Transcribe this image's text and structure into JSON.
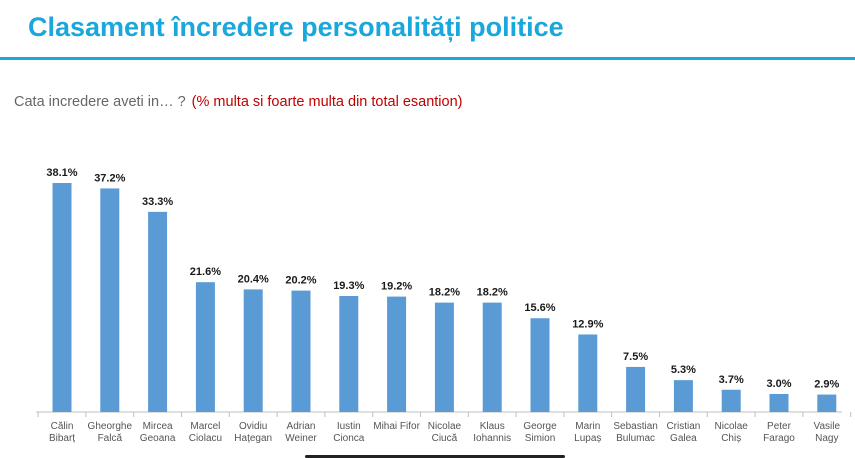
{
  "header": {
    "title": "Clasament încredere personalități politice",
    "question": "Cata incredere aveti in… ?",
    "note": "(% multa si foarte multa din total esantion)"
  },
  "colors": {
    "accent": "#1aa7dc",
    "bar": "#5b9bd5",
    "note": "#c00000"
  },
  "chart_data": {
    "type": "bar",
    "title": "",
    "xlabel": "",
    "ylabel": "",
    "ylim": [
      0,
      40
    ],
    "grid": false,
    "legend": "none",
    "categories": [
      [
        "Călin",
        "Bibarț"
      ],
      [
        "Gheorghe",
        "Falcă"
      ],
      [
        "Mircea",
        "Geoana"
      ],
      [
        "Marcel",
        "Ciolacu"
      ],
      [
        "Ovidiu",
        "Hațegan"
      ],
      [
        "Adrian",
        "Weiner"
      ],
      [
        "Iustin",
        "Cionca"
      ],
      [
        "Mihai Fifor"
      ],
      [
        "Nicolae",
        "Ciucă"
      ],
      [
        "Klaus",
        "Iohannis"
      ],
      [
        "George",
        "Simion"
      ],
      [
        "Marin",
        "Lupaș"
      ],
      [
        "Sebastian",
        "Bulumac"
      ],
      [
        "Cristian",
        "Galea"
      ],
      [
        "Nicolae",
        "Chiș"
      ],
      [
        "Peter",
        "Farago"
      ],
      [
        "Vasile",
        "Nagy"
      ]
    ],
    "values": [
      38.1,
      37.2,
      33.3,
      21.6,
      20.4,
      20.2,
      19.3,
      19.2,
      18.2,
      18.2,
      15.6,
      12.9,
      7.5,
      5.3,
      3.7,
      3.0,
      2.9
    ],
    "labels": [
      "38.1%",
      "37.2%",
      "33.3%",
      "21.6%",
      "20.4%",
      "20.2%",
      "19.3%",
      "19.2%",
      "18.2%",
      "18.2%",
      "15.6%",
      "12.9%",
      "7.5%",
      "5.3%",
      "3.7%",
      "3.0%",
      "2.9%"
    ]
  }
}
